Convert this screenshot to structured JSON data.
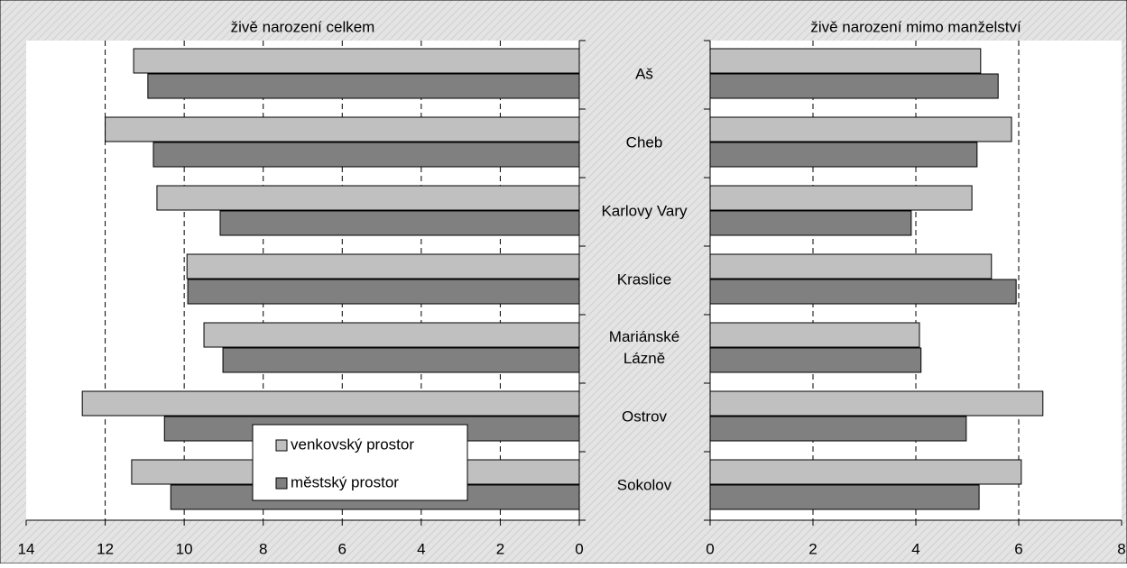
{
  "chart_data": {
    "type": "bar",
    "categories": [
      "Aš",
      "Cheb",
      "Karlovy Vary",
      "Kraslice",
      "Mariánské Lázně",
      "Ostrov",
      "Sokolov"
    ],
    "series": [
      {
        "name": "venkovský prostor",
        "color": "#c0c0c0"
      },
      {
        "name": "městský prostor",
        "color": "#808080"
      }
    ],
    "grid": true,
    "legend": "lower left",
    "panels": [
      {
        "title": "živě narození celkem",
        "reversed": true,
        "xlim": [
          0,
          14
        ],
        "xticks": [
          0,
          2,
          4,
          6,
          8,
          10,
          12,
          14
        ],
        "series": [
          {
            "values": [
              11.28,
              12.0,
              10.69,
              9.93,
              9.5,
              12.58,
              11.33
            ]
          },
          {
            "values": [
              10.92,
              10.78,
              9.09,
              9.91,
              9.02,
              10.5,
              10.34
            ]
          }
        ]
      },
      {
        "title": "živě narození mimo manželství",
        "reversed": false,
        "xlim": [
          0,
          8
        ],
        "xticks": [
          0,
          2,
          4,
          6,
          8
        ],
        "series": [
          {
            "values": [
              5.26,
              5.86,
              5.09,
              5.47,
              4.07,
              6.47,
              6.05
            ]
          },
          {
            "values": [
              5.6,
              5.19,
              3.91,
              5.95,
              4.1,
              4.98,
              5.23
            ]
          }
        ]
      }
    ]
  }
}
